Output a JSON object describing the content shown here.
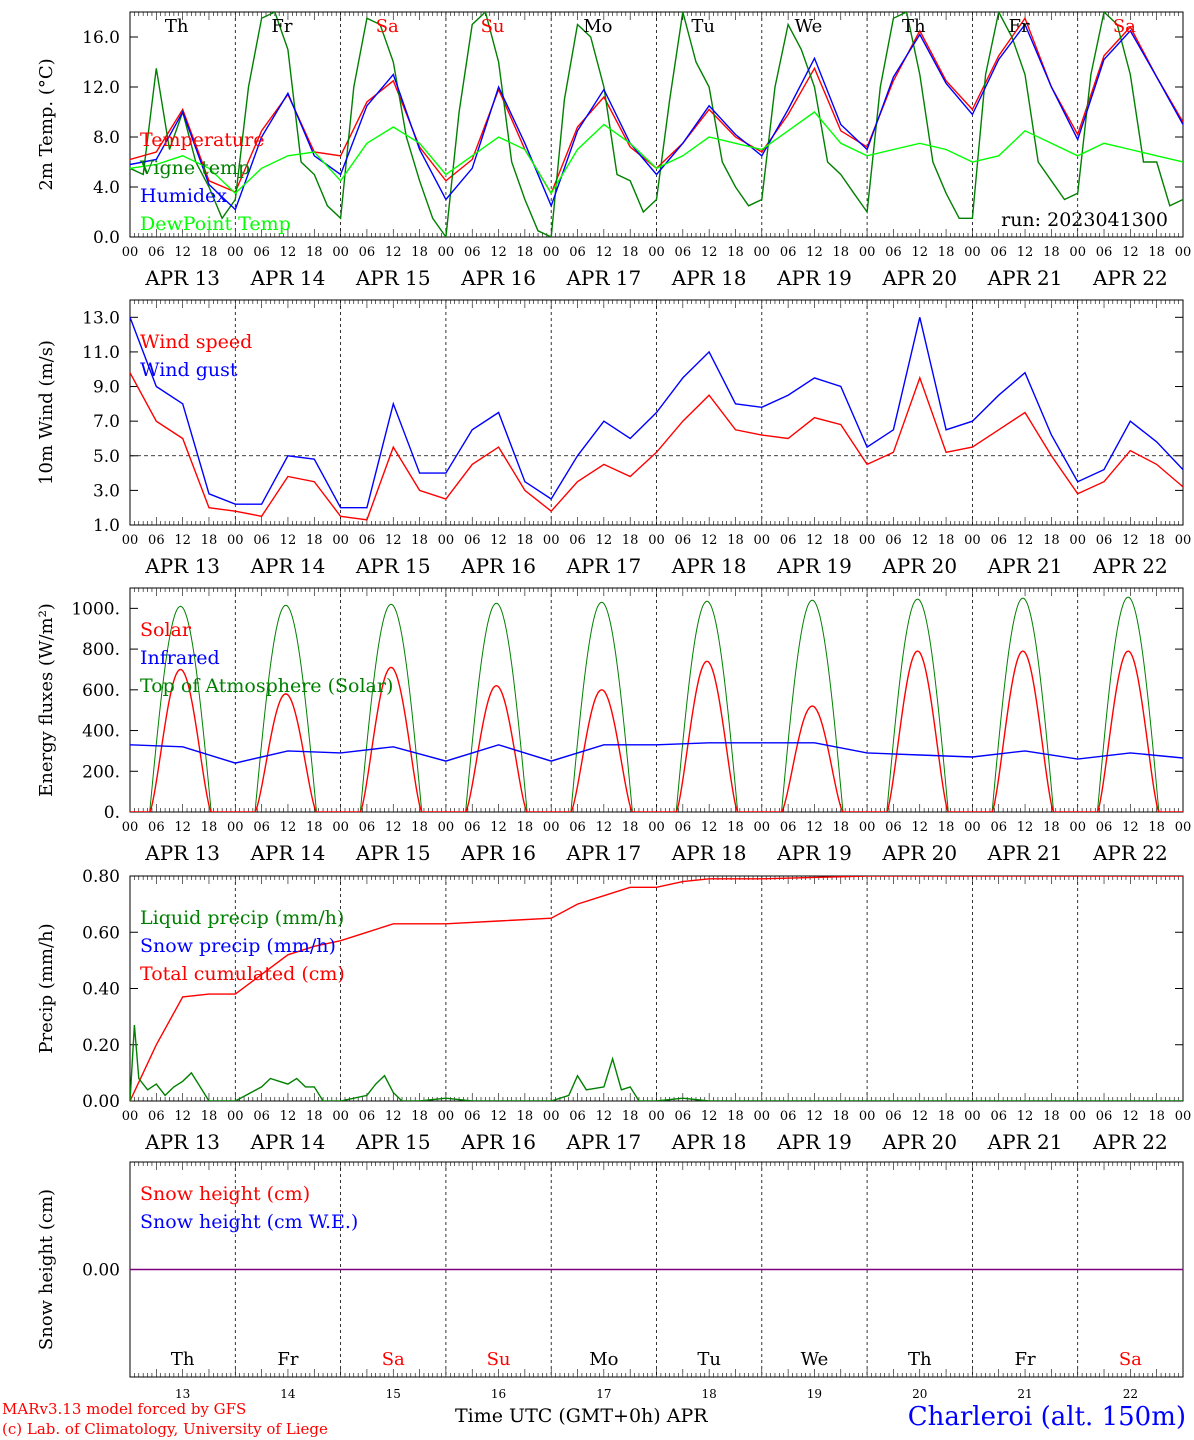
{
  "chart_data": [
    {
      "type": "line",
      "ylabel": "2m Temp. (°C)",
      "ylim": [
        0,
        18
      ],
      "yticks": [
        "0.0",
        "4.0",
        "8.0",
        "12.0",
        "16.0"
      ],
      "ytick_values": [
        0,
        4,
        8,
        12,
        16
      ],
      "annotation": "run: 2023041300",
      "legend": [
        {
          "name": "Temperature",
          "color": "#ff0000"
        },
        {
          "name": "Vigne temp",
          "color": "#008000"
        },
        {
          "name": "Humidex",
          "color": "#0000ff"
        },
        {
          "name": "DewPoint Temp",
          "color": "#00ff00"
        }
      ],
      "series": [
        {
          "name": "Temperature",
          "color": "#ff0000",
          "x": [
            0,
            6,
            12,
            18,
            24,
            30,
            36,
            42,
            48,
            54,
            60,
            66,
            72,
            78,
            84,
            90,
            96,
            102,
            108,
            114,
            120,
            126,
            132,
            138,
            144,
            150,
            156,
            162,
            168,
            174,
            180,
            186,
            192,
            198,
            204,
            210,
            216,
            222,
            228,
            234,
            240
          ],
          "values": [
            6.2,
            6.8,
            10.2,
            4.5,
            3.6,
            8.5,
            11.4,
            6.8,
            6.5,
            10.8,
            12.5,
            7.2,
            4.5,
            6.2,
            11.8,
            7.0,
            3.5,
            8.8,
            11.2,
            7.2,
            5.5,
            7.5,
            10.2,
            8.0,
            6.8,
            9.8,
            13.5,
            8.5,
            7.2,
            12.5,
            16.5,
            12.5,
            10.2,
            14.5,
            17.5,
            12.0,
            8.2,
            14.5,
            16.8,
            12.8,
            9.2
          ]
        },
        {
          "name": "Vigne temp",
          "color": "#008000",
          "x": [
            0,
            3,
            6,
            9,
            12,
            15,
            18,
            21,
            24,
            27,
            30,
            33,
            36,
            39,
            42,
            45,
            48,
            51,
            54,
            57,
            60,
            63,
            66,
            69,
            72,
            75,
            78,
            81,
            84,
            87,
            90,
            93,
            96,
            99,
            102,
            105,
            108,
            111,
            114,
            117,
            120,
            123,
            126,
            129,
            132,
            135,
            138,
            141,
            144,
            147,
            150,
            153,
            156,
            159,
            162,
            165,
            168,
            171,
            174,
            177,
            180,
            183,
            186,
            189,
            192,
            195,
            198,
            201,
            204,
            207,
            210,
            213,
            216,
            219,
            222,
            225,
            228,
            231,
            234,
            237,
            240
          ],
          "values": [
            5.5,
            5.0,
            13.5,
            7.0,
            10.0,
            6.0,
            4.0,
            1.5,
            3.0,
            12.0,
            17.5,
            18.0,
            15.0,
            6.0,
            5.0,
            2.5,
            1.5,
            12.0,
            17.5,
            17.0,
            14.0,
            8.0,
            4.5,
            1.5,
            0.0,
            10.0,
            17.0,
            18.0,
            14.0,
            6.0,
            3.0,
            0.5,
            0.0,
            11.0,
            17.0,
            16.0,
            12.0,
            5.0,
            4.5,
            2.0,
            3.0,
            11.0,
            18.0,
            14.0,
            12.0,
            6.0,
            4.0,
            2.5,
            3.0,
            12.0,
            17.0,
            15.0,
            12.0,
            6.0,
            5.0,
            3.5,
            2.0,
            12.0,
            17.5,
            18.0,
            13.0,
            6.0,
            3.5,
            1.5,
            1.5,
            13.0,
            18.0,
            16.0,
            13.0,
            6.0,
            4.5,
            3.0,
            3.5,
            13.0,
            18.0,
            17.0,
            13.0,
            6.0,
            6.0,
            2.5,
            3.0
          ]
        },
        {
          "name": "Humidex",
          "color": "#0000ff",
          "x": [
            0,
            6,
            12,
            18,
            24,
            30,
            36,
            42,
            48,
            54,
            60,
            66,
            72,
            78,
            84,
            90,
            96,
            102,
            108,
            114,
            120,
            126,
            132,
            138,
            144,
            150,
            156,
            162,
            168,
            174,
            180,
            186,
            192,
            198,
            204,
            210,
            216,
            222,
            228,
            234,
            240
          ],
          "values": [
            5.8,
            6.2,
            10.0,
            4.2,
            2.2,
            8.0,
            11.5,
            6.5,
            5.0,
            10.5,
            13.0,
            7.0,
            3.0,
            5.5,
            12.0,
            7.5,
            2.5,
            8.5,
            11.8,
            7.5,
            5.0,
            7.5,
            10.5,
            8.2,
            6.5,
            10.2,
            14.3,
            9.0,
            7.0,
            12.8,
            16.2,
            12.3,
            9.8,
            14.2,
            17.0,
            12.0,
            7.8,
            14.2,
            16.5,
            12.8,
            9.0
          ]
        },
        {
          "name": "DewPoint Temp",
          "color": "#00ff00",
          "x": [
            0,
            6,
            12,
            18,
            24,
            30,
            36,
            42,
            48,
            54,
            60,
            66,
            72,
            78,
            84,
            90,
            96,
            102,
            108,
            114,
            120,
            126,
            132,
            138,
            144,
            150,
            156,
            162,
            168,
            174,
            180,
            186,
            192,
            198,
            204,
            210,
            216,
            222,
            228,
            234,
            240
          ],
          "values": [
            5.5,
            5.8,
            6.5,
            5.5,
            3.5,
            5.5,
            6.5,
            6.8,
            4.5,
            7.5,
            8.8,
            7.5,
            5.0,
            6.5,
            8.0,
            7.0,
            3.5,
            7.0,
            9.0,
            7.5,
            5.5,
            6.5,
            8.0,
            7.5,
            7.0,
            8.5,
            10.0,
            7.5,
            6.5,
            7.0,
            7.5,
            7.0,
            6.0,
            6.5,
            8.5,
            7.5,
            6.5,
            7.5,
            7.0,
            6.5,
            6.0
          ]
        }
      ]
    },
    {
      "type": "line",
      "ylabel": "10m Wind (m/s)",
      "ylim": [
        1,
        14
      ],
      "yticks": [
        "1.0",
        "3.0",
        "5.0",
        "7.0",
        "9.0",
        "11.0",
        "13.0"
      ],
      "ytick_values": [
        1,
        3,
        5,
        7,
        9,
        11,
        13
      ],
      "reference_line": 5,
      "legend": [
        {
          "name": "Wind speed",
          "color": "#ff0000"
        },
        {
          "name": "Wind gust",
          "color": "#0000ff"
        }
      ],
      "series": [
        {
          "name": "Wind speed",
          "color": "#ff0000",
          "x": [
            0,
            6,
            12,
            18,
            24,
            30,
            36,
            42,
            48,
            54,
            60,
            66,
            72,
            78,
            84,
            90,
            96,
            102,
            108,
            114,
            120,
            126,
            132,
            138,
            144,
            150,
            156,
            162,
            168,
            174,
            180,
            186,
            192,
            198,
            204,
            210,
            216,
            222,
            228,
            234,
            240
          ],
          "values": [
            9.8,
            7.0,
            6.0,
            2.0,
            1.8,
            1.5,
            3.8,
            3.5,
            1.5,
            1.3,
            5.5,
            3.0,
            2.5,
            4.5,
            5.5,
            3.0,
            1.8,
            3.5,
            4.5,
            3.8,
            5.2,
            7.0,
            8.5,
            6.5,
            6.2,
            6.0,
            7.2,
            6.8,
            4.5,
            5.2,
            9.5,
            5.2,
            5.5,
            6.5,
            7.5,
            5.0,
            2.8,
            3.5,
            5.3,
            4.5,
            3.2
          ]
        },
        {
          "name": "Wind gust",
          "color": "#0000ff",
          "x": [
            0,
            6,
            12,
            18,
            24,
            30,
            36,
            42,
            48,
            54,
            60,
            66,
            72,
            78,
            84,
            90,
            96,
            102,
            108,
            114,
            120,
            126,
            132,
            138,
            144,
            150,
            156,
            162,
            168,
            174,
            180,
            186,
            192,
            198,
            204,
            210,
            216,
            222,
            228,
            234,
            240
          ],
          "values": [
            13.0,
            9.0,
            8.0,
            2.8,
            2.2,
            2.2,
            5.0,
            4.8,
            2.0,
            2.0,
            8.0,
            4.0,
            4.0,
            6.5,
            7.5,
            3.5,
            2.5,
            5.0,
            7.0,
            6.0,
            7.5,
            9.5,
            11.0,
            8.0,
            7.8,
            8.5,
            9.5,
            9.0,
            5.5,
            6.5,
            13.0,
            6.5,
            7.0,
            8.5,
            9.8,
            6.2,
            3.5,
            4.2,
            7.0,
            5.8,
            4.2
          ]
        }
      ]
    },
    {
      "type": "line",
      "ylabel": "Energy fluxes (W/m²)",
      "ylim": [
        0,
        1100
      ],
      "yticks": [
        "0.",
        "200.",
        "400.",
        "600.",
        "800.",
        "1000."
      ],
      "ytick_values": [
        0,
        200,
        400,
        600,
        800,
        1000
      ],
      "legend": [
        {
          "name": "Solar",
          "color": "#ff0000"
        },
        {
          "name": "Infrared",
          "color": "#0000ff"
        },
        {
          "name": "Top of Atmosphere (Solar)",
          "color": "#008000"
        }
      ],
      "toa_peaks": [
        1010,
        1015,
        1020,
        1025,
        1030,
        1035,
        1040,
        1045,
        1050,
        1055
      ],
      "solar_peaks": [
        700,
        580,
        710,
        620,
        600,
        740,
        520,
        790,
        790,
        790
      ],
      "series": [
        {
          "name": "Infrared",
          "color": "#0000ff",
          "x": [
            0,
            12,
            24,
            36,
            48,
            60,
            72,
            84,
            96,
            108,
            120,
            132,
            144,
            156,
            168,
            180,
            192,
            204,
            216,
            228,
            240
          ],
          "values": [
            330,
            320,
            240,
            300,
            290,
            320,
            250,
            330,
            250,
            330,
            330,
            340,
            340,
            340,
            290,
            280,
            270,
            300,
            260,
            290,
            265
          ]
        }
      ]
    },
    {
      "type": "line",
      "ylabel": "Precip (mm/h)",
      "ylim": [
        0,
        0.8
      ],
      "yticks": [
        "0.00",
        "0.20",
        "0.40",
        "0.60",
        "0.80"
      ],
      "ytick_values": [
        0,
        0.2,
        0.4,
        0.6,
        0.8
      ],
      "legend": [
        {
          "name": "Liquid precip (mm/h)",
          "color": "#008000"
        },
        {
          "name": "Snow precip (mm/h)",
          "color": "#0000ff"
        },
        {
          "name": "Total cumulated (cm)",
          "color": "#ff0000"
        }
      ],
      "series": [
        {
          "name": "Total cumulated (cm)",
          "color": "#ff0000",
          "x": [
            0,
            6,
            12,
            18,
            24,
            30,
            36,
            42,
            48,
            54,
            60,
            66,
            72,
            84,
            96,
            102,
            108,
            114,
            120,
            126,
            132,
            144,
            156,
            168,
            240
          ],
          "values": [
            0.0,
            0.2,
            0.37,
            0.38,
            0.38,
            0.45,
            0.52,
            0.55,
            0.57,
            0.6,
            0.63,
            0.63,
            0.63,
            0.64,
            0.65,
            0.7,
            0.73,
            0.76,
            0.76,
            0.78,
            0.79,
            0.79,
            0.795,
            0.8,
            0.8
          ]
        },
        {
          "name": "Liquid precip (mm/h)",
          "color": "#008000",
          "x": [
            0,
            1,
            2,
            4,
            6,
            8,
            10,
            12,
            14,
            16,
            18,
            24,
            30,
            32,
            34,
            36,
            38,
            40,
            42,
            44,
            48,
            54,
            56,
            58,
            60,
            62,
            66,
            72,
            78,
            84,
            96,
            100,
            102,
            104,
            108,
            110,
            112,
            114,
            116,
            120,
            126,
            132,
            240
          ],
          "values": [
            0.0,
            0.27,
            0.08,
            0.04,
            0.06,
            0.02,
            0.05,
            0.07,
            0.1,
            0.05,
            0.0,
            0.0,
            0.05,
            0.08,
            0.07,
            0.06,
            0.08,
            0.05,
            0.05,
            0.0,
            0.0,
            0.02,
            0.06,
            0.09,
            0.03,
            0.0,
            0.0,
            0.01,
            0.0,
            0.0,
            0.0,
            0.02,
            0.09,
            0.04,
            0.05,
            0.15,
            0.04,
            0.05,
            0.0,
            0.0,
            0.01,
            0.0,
            0.0
          ]
        }
      ]
    },
    {
      "type": "line",
      "ylabel": "Snow height (cm)",
      "ylim": [
        -1,
        1
      ],
      "yticks": [
        "0.00"
      ],
      "ytick_values": [
        0
      ],
      "legend": [
        {
          "name": "Snow height (cm)",
          "color": "#ff0000"
        },
        {
          "name": "Snow height (cm W.E.)",
          "color": "#0000ff"
        }
      ],
      "series": [
        {
          "name": "Snow height",
          "color": "#800080",
          "x": [
            0,
            240
          ],
          "values": [
            0,
            0
          ]
        }
      ]
    }
  ],
  "axis": {
    "hour_labels": [
      "00",
      "06",
      "12",
      "18"
    ],
    "end_label": "00",
    "date_labels": [
      "APR 13",
      "APR 14",
      "APR 15",
      "APR 16",
      "APR 17",
      "APR 18",
      "APR 19",
      "APR 20",
      "APR 21",
      "APR 22"
    ],
    "weekdays": [
      "Th",
      "Fr",
      "Sa",
      "Su",
      "Mo",
      "Tu",
      "We",
      "Th",
      "Fr",
      "Sa"
    ],
    "weekday_colors": [
      "#000000",
      "#000000",
      "#ff0000",
      "#ff0000",
      "#000000",
      "#000000",
      "#000000",
      "#000000",
      "#000000",
      "#ff0000"
    ],
    "day_numbers": [
      "13",
      "14",
      "15",
      "16",
      "17",
      "18",
      "19",
      "20",
      "21",
      "22"
    ],
    "time_label": "Time UTC (GMT+0h)",
    "month_label": "APR"
  },
  "footer": {
    "model_line": "MARv3.13 model forced by GFS",
    "credit_line": "(c) Lab. of Climatology, University of Liege",
    "location": "Charleroi (alt. 150m)"
  }
}
